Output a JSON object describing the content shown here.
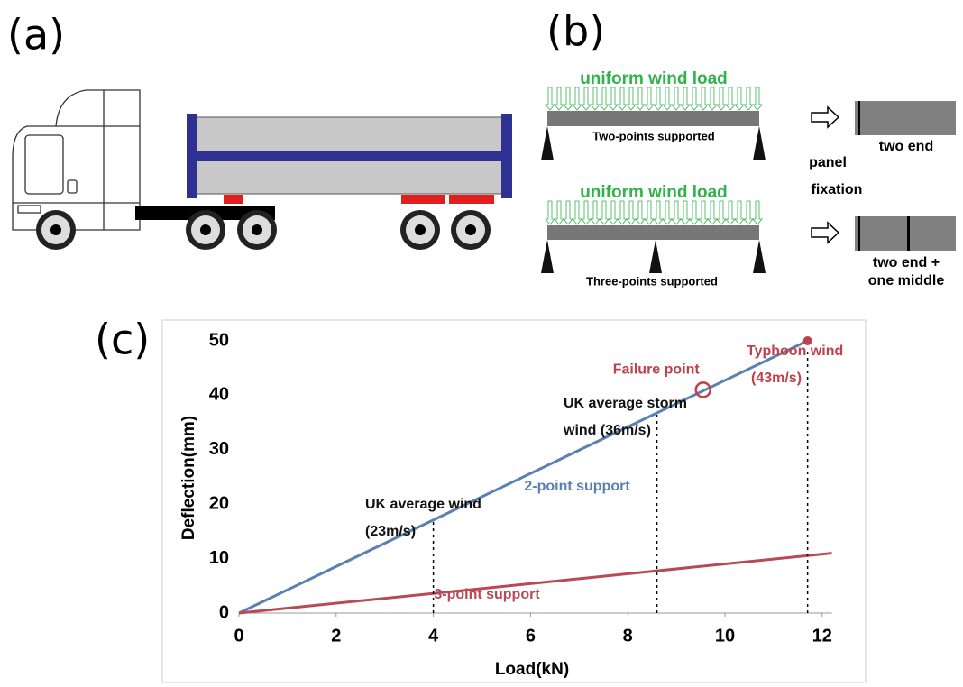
{
  "panel_a": {
    "label": "(a)"
  },
  "panel_b": {
    "label": "(b)",
    "top_beam": {
      "load": "uniform wind load",
      "caption": "Two-points supported"
    },
    "bottom_beam": {
      "load": "uniform wind load",
      "caption": "Three-points supported"
    },
    "fixation_title": [
      "panel",
      "fixation"
    ],
    "top_fixation": [
      "two end"
    ],
    "bottom_fixation": [
      "two end +",
      "one middle"
    ]
  },
  "chart_data": {
    "type": "line",
    "panel_label": "(c)",
    "xlabel": "Load(kN)",
    "ylabel": "Deflection(mm)",
    "xlim": [
      0,
      12.2
    ],
    "ylim": [
      0,
      50
    ],
    "xticks": [
      0,
      2,
      4,
      6,
      8,
      10,
      12
    ],
    "yticks": [
      0,
      10,
      20,
      30,
      40,
      50
    ],
    "series": [
      {
        "name": "2-point support",
        "color": "#5b80b2",
        "x": [
          0,
          11.7
        ],
        "values": [
          0,
          50
        ]
      },
      {
        "name": "3-point support",
        "color": "#b84a55",
        "x": [
          0,
          12.2
        ],
        "values": [
          0,
          11
        ]
      }
    ],
    "reference_lines": [
      {
        "x": 4,
        "top": 17,
        "text": [
          "UK average wind",
          "(23m/s)"
        ],
        "color": "#111111"
      },
      {
        "x": 8.6,
        "top": 37,
        "text": [
          "UK average storm",
          "wind (36m/s)"
        ],
        "color": "#111111"
      },
      {
        "x": 11.7,
        "top": 48,
        "text": [
          "Typhoon wind",
          "(43m/s)"
        ],
        "color": "#c0404c"
      }
    ],
    "markers": [
      {
        "text": "Failure point",
        "x": 9.55,
        "y": 41,
        "color": "#c0404c"
      }
    ]
  }
}
